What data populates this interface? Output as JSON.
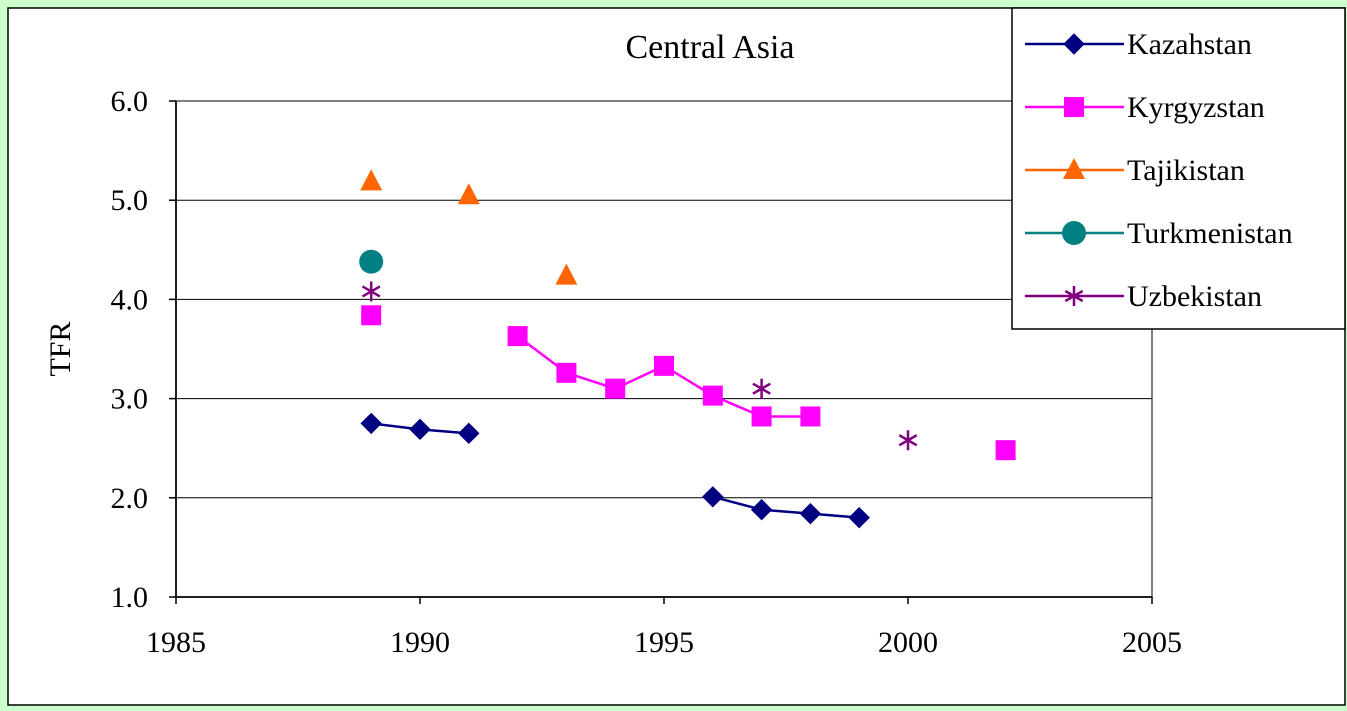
{
  "chart_data": {
    "type": "line",
    "title": "Central Asia",
    "xlabel": "",
    "ylabel": "TFR",
    "xlim": [
      1985,
      2005
    ],
    "ylim": [
      1.0,
      6.0
    ],
    "xticks": [
      1985,
      1990,
      1995,
      2000,
      2005
    ],
    "yticks": [
      1.0,
      2.0,
      3.0,
      4.0,
      5.0,
      6.0
    ],
    "ytick_format": "one-decimal",
    "grid": "horizontal",
    "legend_position": "top-right",
    "series": [
      {
        "name": "Kazahstan",
        "color": "#000080",
        "marker": "diamond",
        "segments": [
          [
            [
              1989,
              2.75
            ],
            [
              1990,
              2.69
            ],
            [
              1991,
              2.65
            ]
          ],
          [
            [
              1996,
              2.01
            ],
            [
              1997,
              1.88
            ],
            [
              1998,
              1.84
            ],
            [
              1999,
              1.8
            ]
          ]
        ]
      },
      {
        "name": "Kyrgyzstan",
        "color": "#ff00ff",
        "marker": "square",
        "segments": [
          [
            [
              1989,
              3.84
            ]
          ],
          [
            [
              1992,
              3.63
            ],
            [
              1993,
              3.26
            ],
            [
              1994,
              3.1
            ],
            [
              1995,
              3.33
            ],
            [
              1996,
              3.03
            ],
            [
              1997,
              2.82
            ],
            [
              1998,
              2.82
            ]
          ],
          [
            [
              2002,
              2.48
            ]
          ]
        ]
      },
      {
        "name": "Tajikistan",
        "color": "#ff6600",
        "marker": "triangle",
        "segments": [
          [
            [
              1989,
              5.19
            ]
          ],
          [
            [
              1991,
              5.05
            ]
          ],
          [
            [
              1993,
              4.24
            ]
          ]
        ]
      },
      {
        "name": "Turkmenistan",
        "color": "#008080",
        "marker": "circle",
        "segments": [
          [
            [
              1989,
              4.38
            ]
          ]
        ]
      },
      {
        "name": "Uzbekistan",
        "color": "#800080",
        "marker": "asterisk",
        "segments": [
          [
            [
              1989,
              4.08
            ]
          ],
          [
            [
              1997,
              3.1
            ]
          ],
          [
            [
              2000,
              2.58
            ]
          ]
        ]
      }
    ]
  }
}
